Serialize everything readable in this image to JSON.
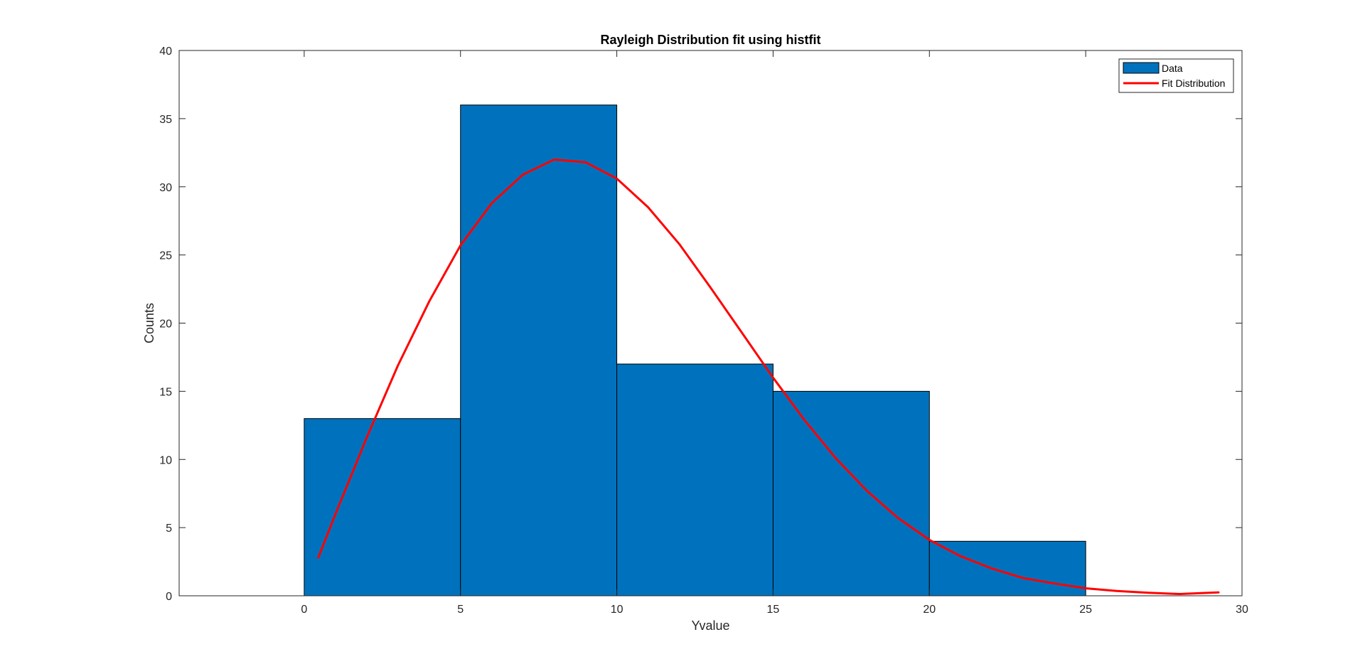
{
  "chart_data": {
    "type": "bar",
    "title": "Rayleigh Distribution fit using histfit",
    "xlabel": "Yvalue",
    "ylabel": "Counts",
    "xlim": [
      -4,
      30
    ],
    "ylim": [
      0,
      40
    ],
    "xticks": [
      0,
      5,
      10,
      15,
      20,
      25,
      30
    ],
    "yticks": [
      0,
      5,
      10,
      15,
      20,
      25,
      30,
      35,
      40
    ],
    "grid": false,
    "legend_position": "top-right",
    "legend": [
      {
        "label": "Data",
        "kind": "patch"
      },
      {
        "label": "Fit Distribution",
        "kind": "line"
      }
    ],
    "series": [
      {
        "name": "Data",
        "kind": "histogram",
        "color": "#0072BD",
        "bins": [
          {
            "x0": 0,
            "x1": 5,
            "count": 13
          },
          {
            "x0": 5,
            "x1": 10,
            "count": 36
          },
          {
            "x0": 10,
            "x1": 15,
            "count": 17
          },
          {
            "x0": 15,
            "x1": 20,
            "count": 15
          },
          {
            "x0": 20,
            "x1": 25,
            "count": 4
          }
        ]
      },
      {
        "name": "Fit Distribution",
        "kind": "line",
        "color": "#FF0000",
        "x": [
          0.45,
          1,
          2,
          3,
          4,
          5,
          6,
          7,
          8,
          9,
          10,
          11,
          12,
          13,
          14,
          15,
          16,
          17,
          18,
          19,
          20,
          21,
          22,
          23,
          24,
          25,
          26,
          27,
          28,
          29.25
        ],
        "y": [
          2.8,
          6.0,
          11.6,
          16.9,
          21.6,
          25.7,
          28.8,
          30.9,
          32.0,
          31.8,
          30.6,
          28.5,
          25.8,
          22.6,
          19.3,
          16.0,
          12.9,
          10.1,
          7.7,
          5.7,
          4.1,
          2.9,
          2.0,
          1.3,
          0.9,
          0.55,
          0.35,
          0.22,
          0.13,
          0.25
        ]
      }
    ]
  }
}
